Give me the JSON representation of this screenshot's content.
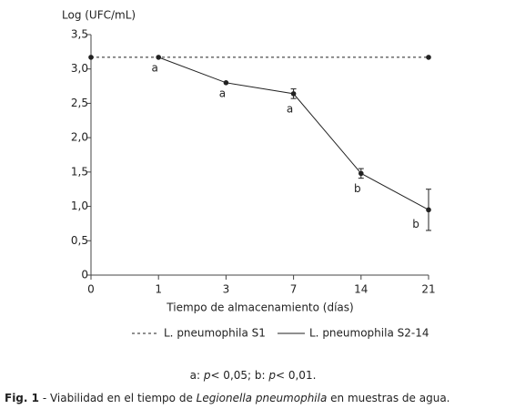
{
  "chart_data": {
    "type": "line",
    "y_label": "Log (UFC/mL)",
    "x_label": "Tiempo de almacenamiento (días)",
    "categories": [
      "0",
      "1",
      "3",
      "7",
      "14",
      "21"
    ],
    "ylim": [
      0,
      3.5
    ],
    "yticks": [
      0,
      {
        "value": 0.5,
        "label": "0,5"
      },
      {
        "value": 1.0,
        "label": "1,0"
      },
      {
        "value": 1.5,
        "label": "1,5"
      },
      {
        "value": 2.0,
        "label": "2,0"
      },
      {
        "value": 2.5,
        "label": "2,5"
      },
      {
        "value": 3.0,
        "label": "3,0"
      },
      {
        "value": 3.5,
        "label": "3,5"
      }
    ],
    "span_gaps": true,
    "series": [
      {
        "name": "L. pneumophila S1",
        "color": "#222222",
        "dash": "dotted",
        "values": [
          3.17,
          null,
          null,
          null,
          null,
          3.17
        ]
      },
      {
        "name": "L. pneumophila S2-14",
        "color": "#222222",
        "dash": "solid",
        "values": [
          null,
          3.17,
          2.8,
          2.64,
          1.48,
          0.95
        ],
        "errors": [
          null,
          null,
          null,
          0.07,
          0.07,
          0.3
        ],
        "point_labels": [
          null,
          "a",
          "a",
          "a",
          "b",
          "b"
        ]
      }
    ]
  },
  "footnote": [
    "a: ",
    "p",
    "< 0,05; b: ",
    "p",
    "< 0,01."
  ],
  "caption": [
    "Fig. 1",
    " - Viabilidad en el tiempo de ",
    "Legionella pneumophila",
    " en muestras de agua."
  ]
}
